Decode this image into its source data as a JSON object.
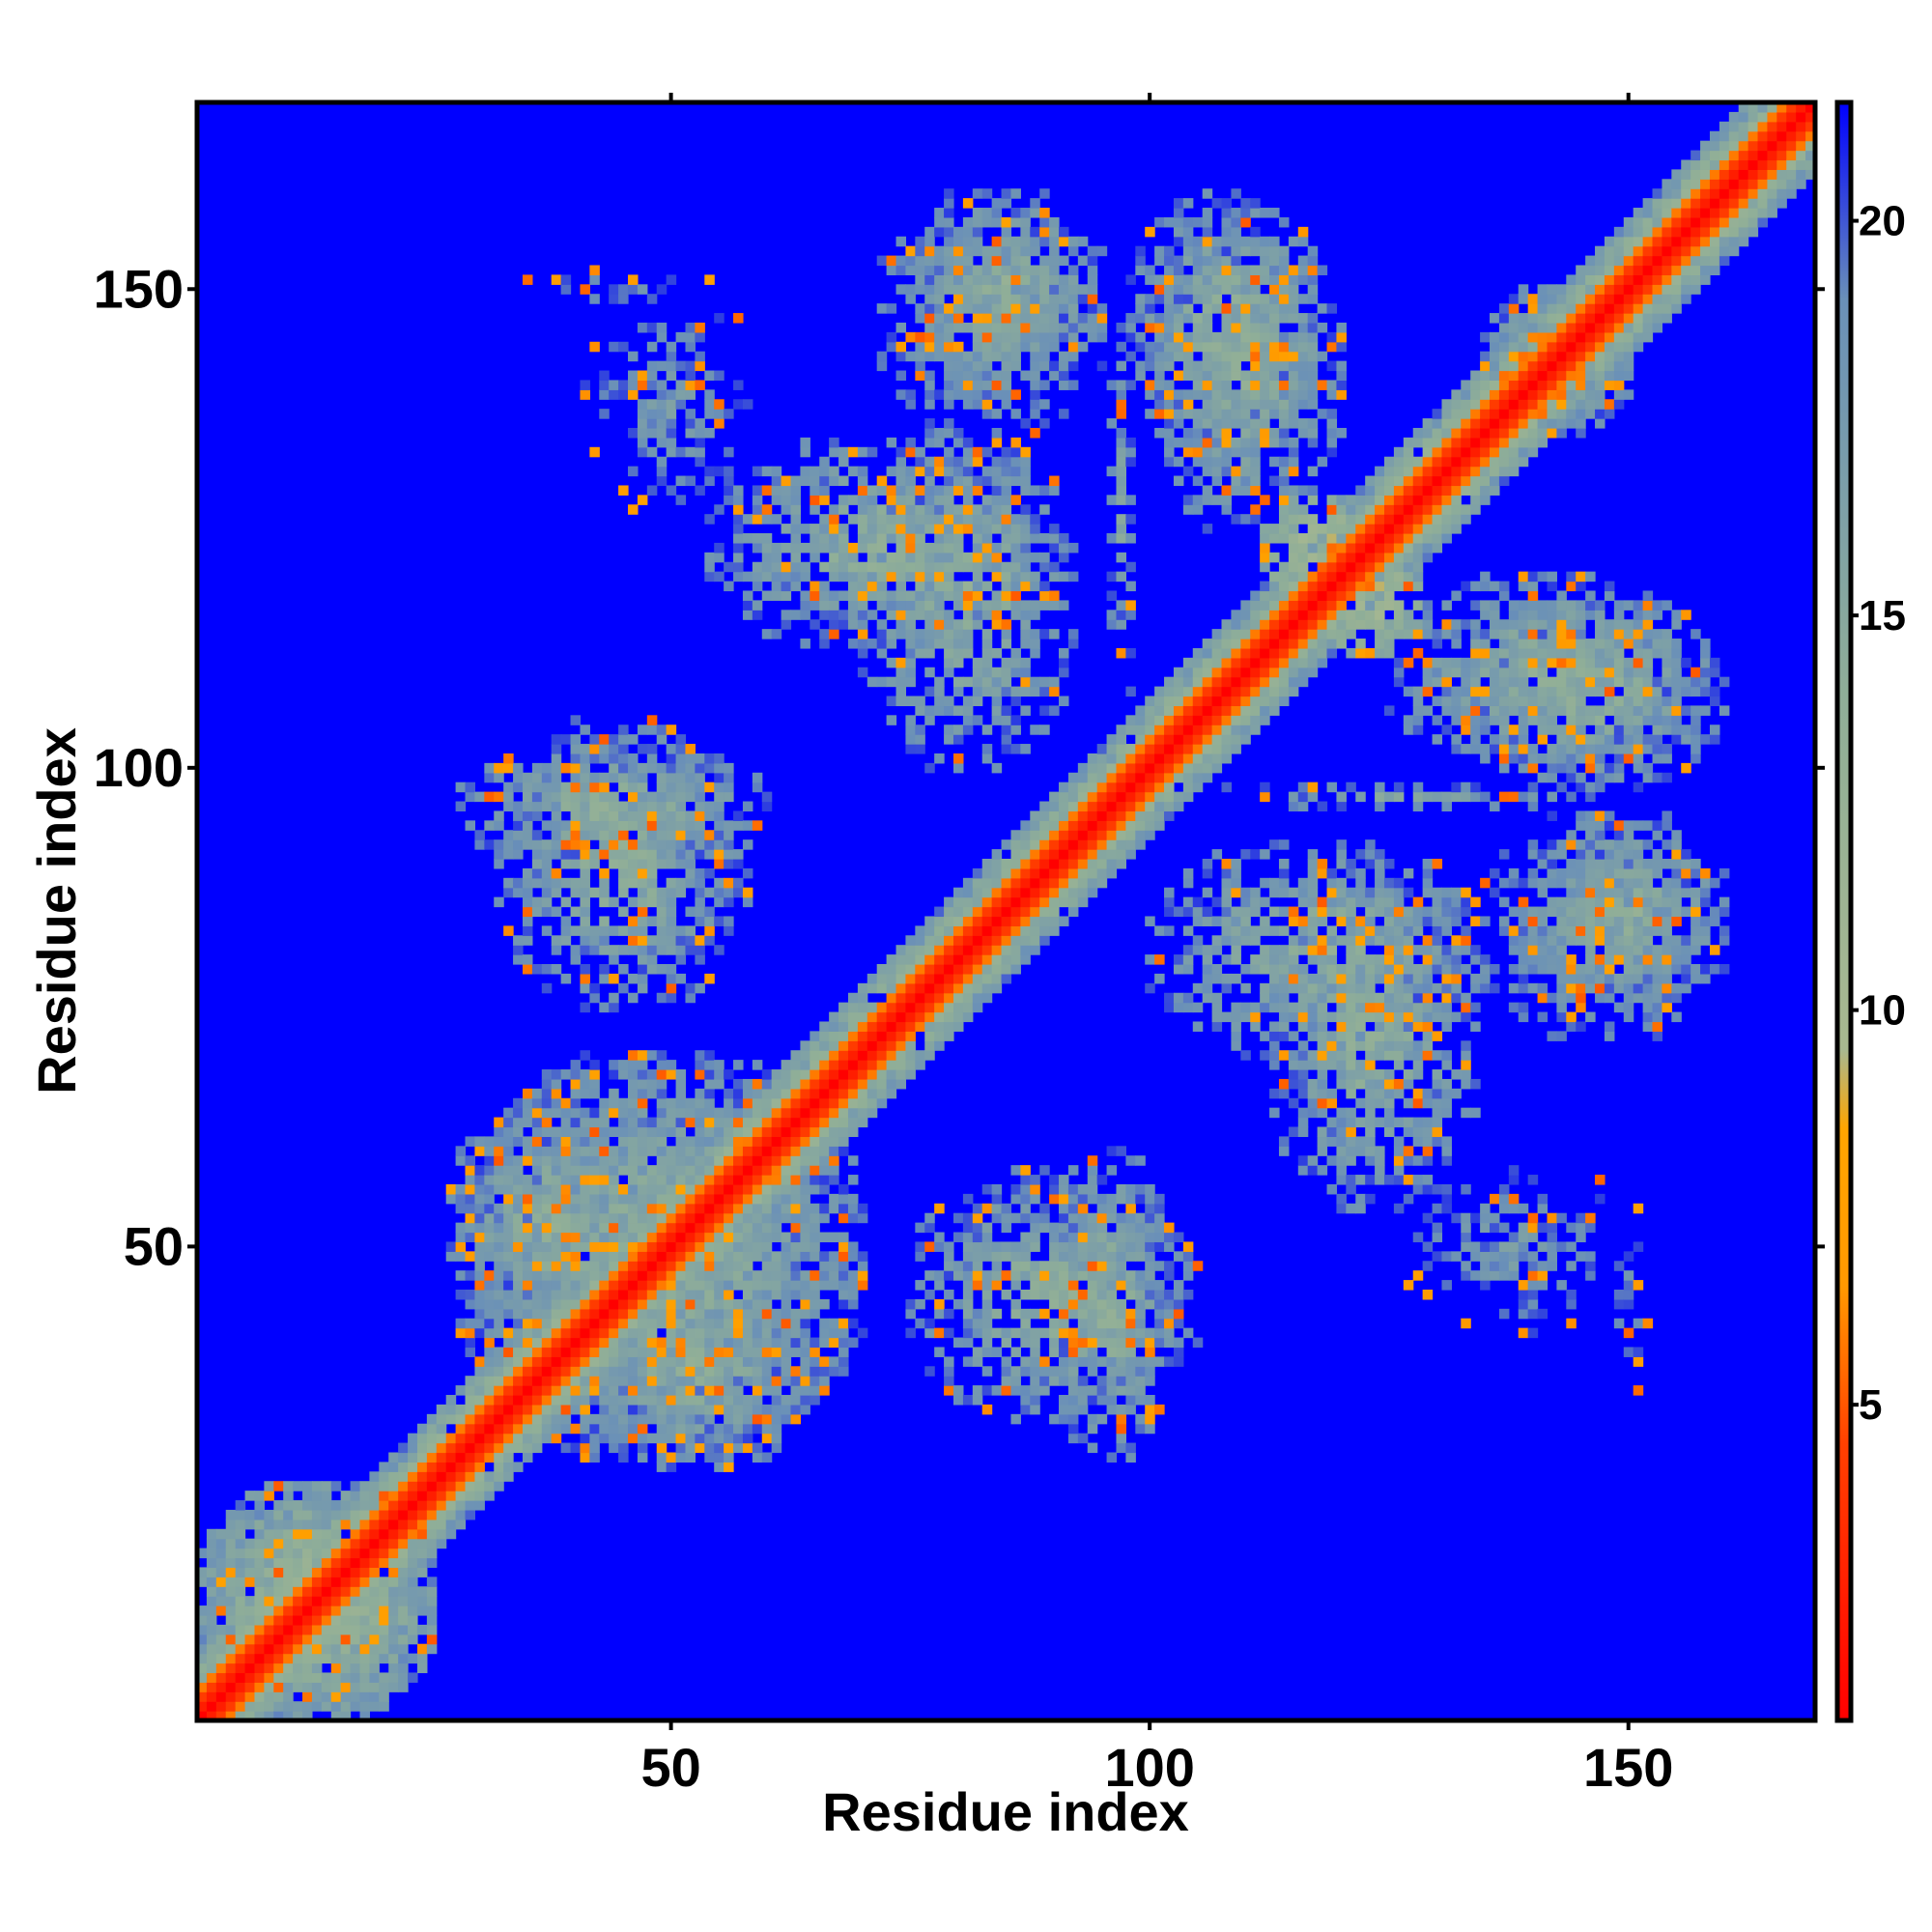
{
  "chart_data": {
    "type": "heatmap",
    "title": "",
    "xlabel": "Residue index",
    "ylabel": "Residue index",
    "n_residues": 169,
    "xlim": [
      1,
      169
    ],
    "ylim": [
      1,
      169
    ],
    "x_ticks": [
      50,
      100,
      150
    ],
    "y_ticks": [
      50,
      100,
      150
    ],
    "colorbar": {
      "ticks": [
        5,
        10,
        15,
        20
      ],
      "range": [
        1,
        21.5
      ],
      "stops": [
        {
          "value": 1,
          "color": "#ff0000"
        },
        {
          "value": 4.5,
          "color": "#ff4000"
        },
        {
          "value": 6.5,
          "color": "#ff9900"
        },
        {
          "value": 8.5,
          "color": "#ffa500"
        },
        {
          "value": 9.5,
          "color": "#a8b890"
        },
        {
          "value": 14,
          "color": "#8fae98"
        },
        {
          "value": 19,
          "color": "#6a90b8"
        },
        {
          "value": 21.5,
          "color": "#0000ff"
        }
      ]
    },
    "background_color": "#0000ff",
    "background_value": 21.5,
    "features": [
      {
        "kind": "diagonal",
        "distance": 1,
        "half_width": 2.5
      },
      {
        "kind": "diagonal_band",
        "distance": 7,
        "half_width": 7
      },
      {
        "kind": "block",
        "x": [
          28,
          70
        ],
        "y": [
          28,
          70
        ],
        "distance": 12
      },
      {
        "kind": "block",
        "x": [
          28,
          60
        ],
        "y": [
          90,
          102
        ],
        "distance": 12
      },
      {
        "kind": "block",
        "x": [
          34,
          56
        ],
        "y": [
          148,
          152
        ],
        "distance": 16
      },
      {
        "kind": "block",
        "x": [
          54,
          90
        ],
        "y": [
          112,
          134
        ],
        "distance": 12
      },
      {
        "kind": "block",
        "x": [
          72,
          95
        ],
        "y": [
          135,
          160
        ],
        "distance": 13
      },
      {
        "kind": "block",
        "x": [
          98,
          118
        ],
        "y": [
          133,
          160
        ],
        "distance": 12
      },
      {
        "kind": "block",
        "x": [
          100,
          152
        ],
        "y": [
          96,
          98
        ],
        "distance": 14
      },
      {
        "kind": "block",
        "x": [
          125,
          158
        ],
        "y": [
          100,
          120
        ],
        "distance": 12
      },
      {
        "kind": "block",
        "x": [
          100,
          135
        ],
        "y": [
          70,
          92
        ],
        "distance": 12
      },
      {
        "kind": "block",
        "x": [
          140,
          160
        ],
        "y": [
          75,
          95
        ],
        "distance": 12
      },
      {
        "kind": "block",
        "x": [
          125,
          150
        ],
        "y": [
          40,
          60
        ],
        "distance": 15
      },
      {
        "kind": "block",
        "x": [
          75,
          105
        ],
        "y": [
          32,
          58
        ],
        "distance": 12
      },
      {
        "kind": "block",
        "x": [
          40,
          65
        ],
        "y": [
          27,
          48
        ],
        "distance": 12
      },
      {
        "kind": "block",
        "x": [
          135,
          150
        ],
        "y": [
          135,
          150
        ],
        "distance": 12
      },
      {
        "kind": "block",
        "x": [
          112,
          125
        ],
        "y": [
          118,
          128
        ],
        "distance": 8
      },
      {
        "kind": "block",
        "x": [
          1,
          25
        ],
        "y": [
          1,
          25
        ],
        "distance": 10
      }
    ]
  }
}
